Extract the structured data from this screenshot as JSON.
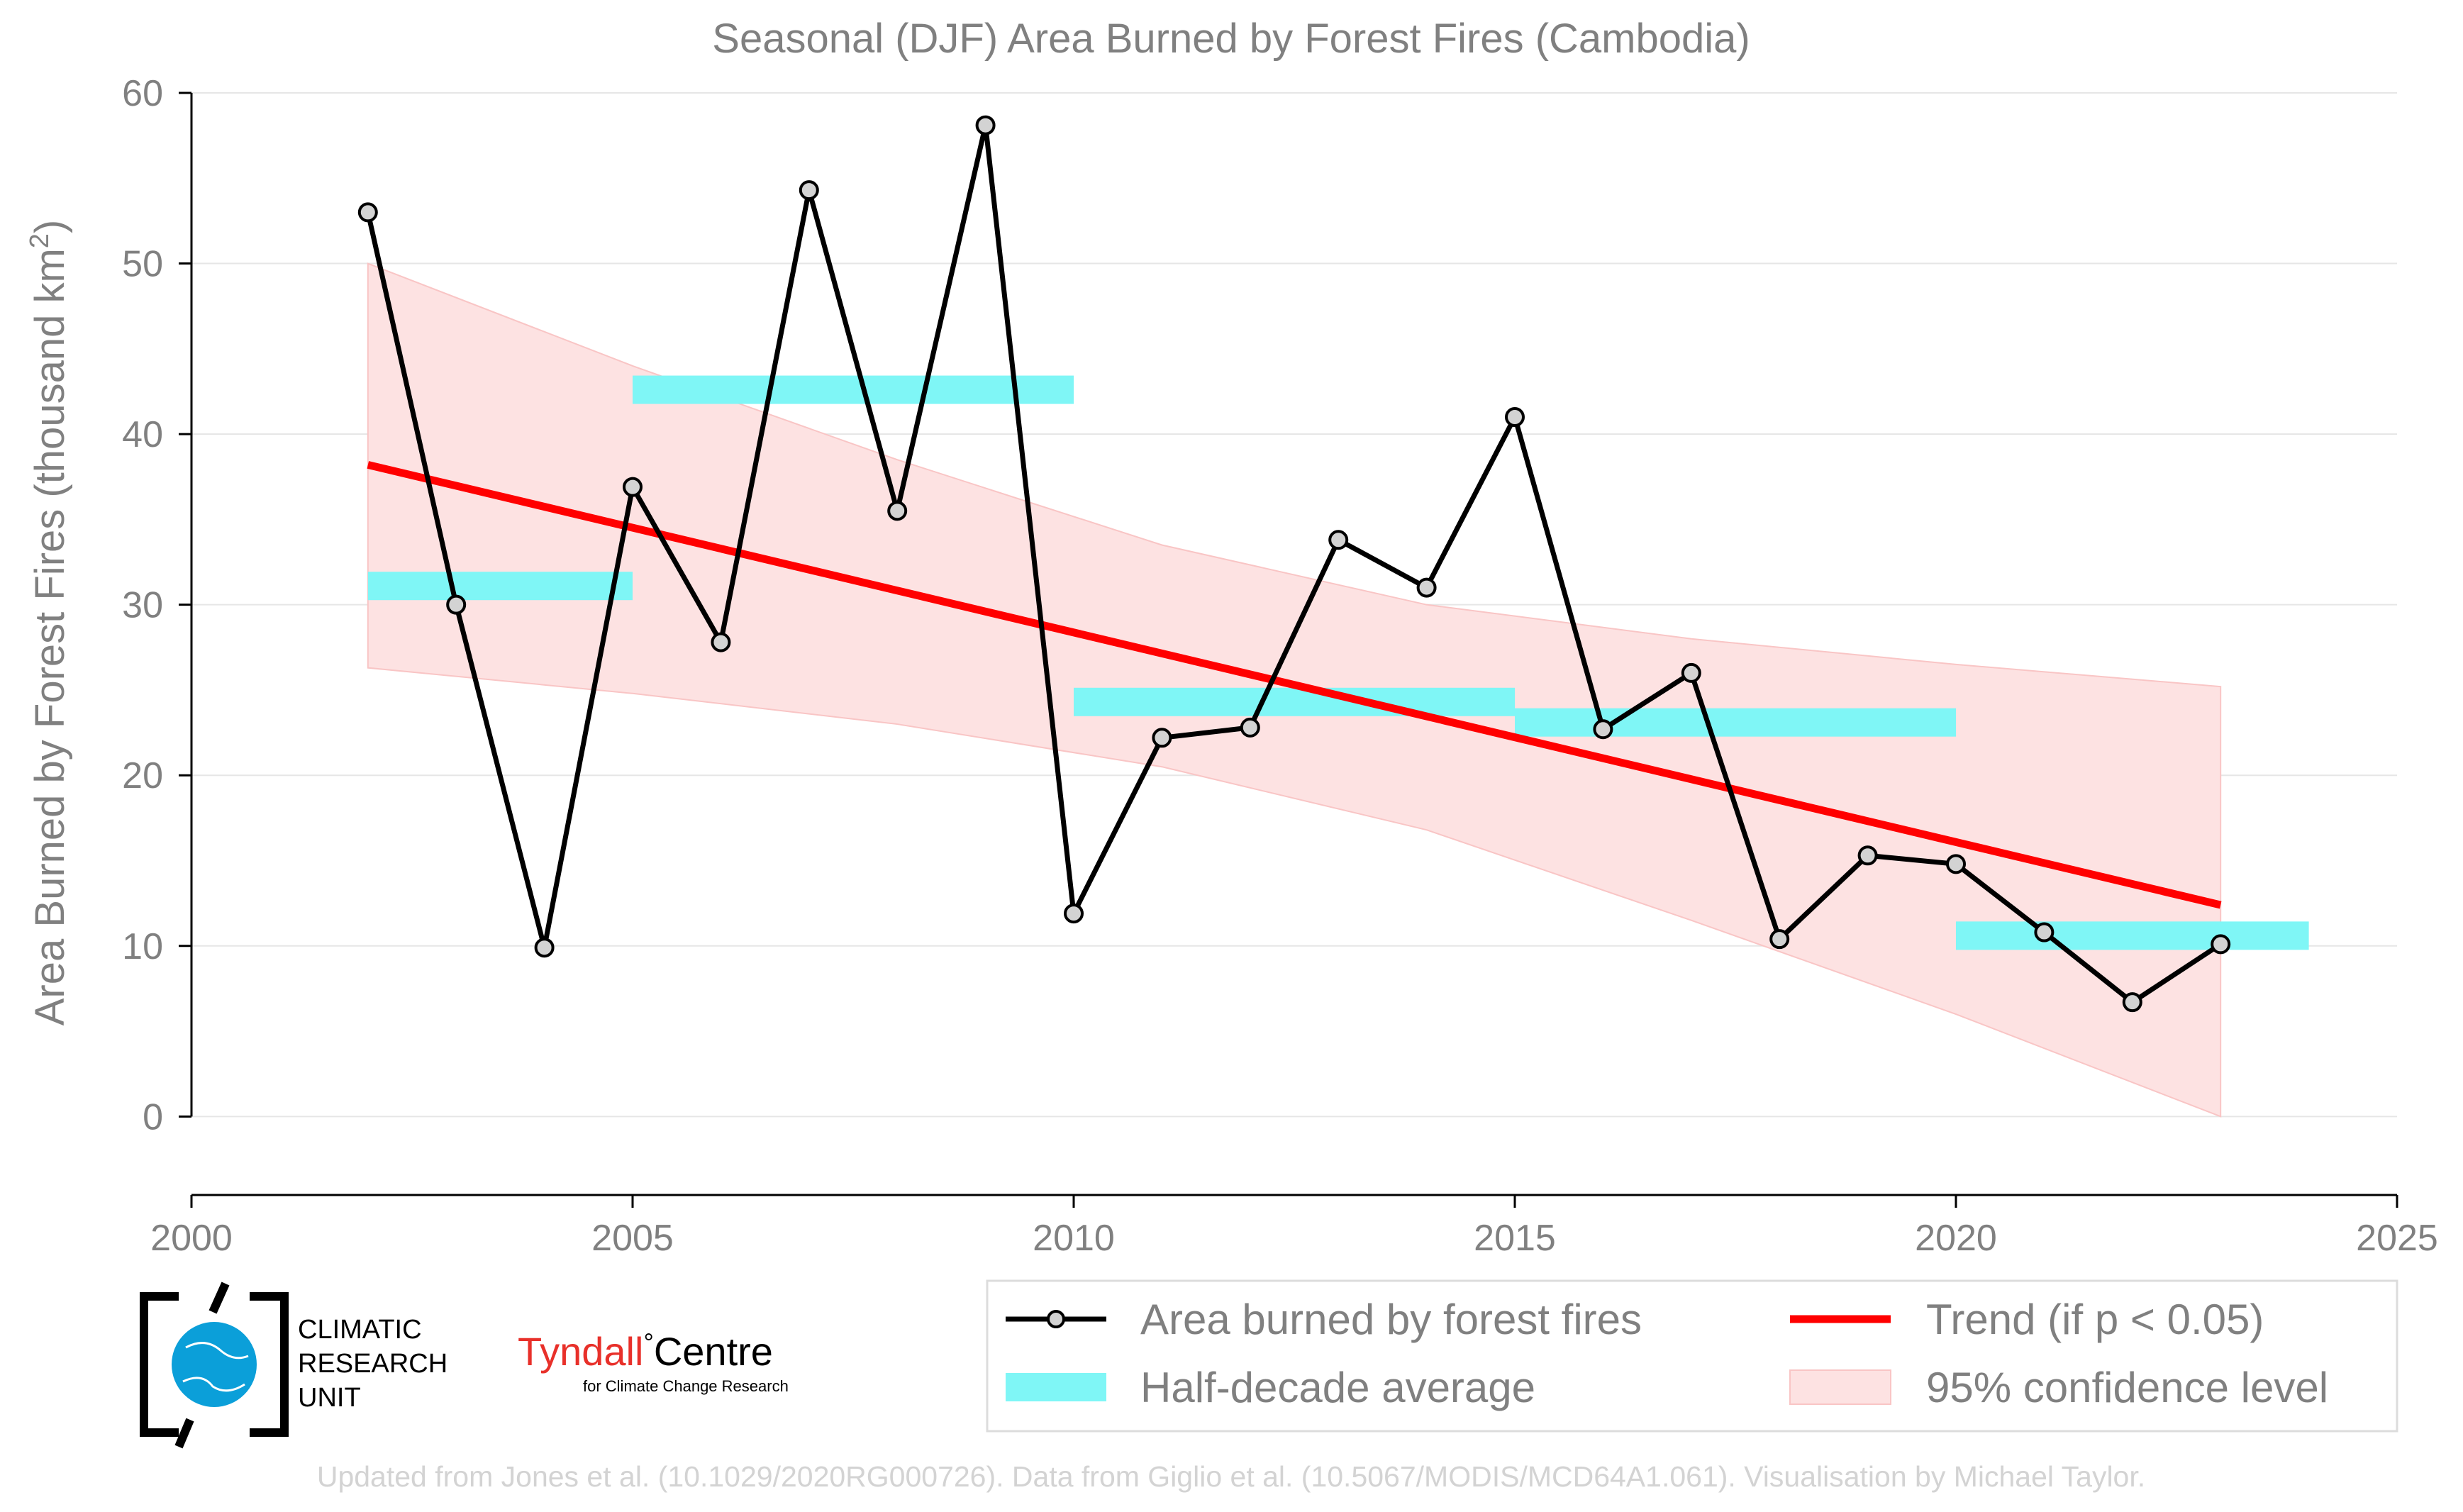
{
  "colors": {
    "line": "#000000",
    "marker_fill": "#d3d3d3",
    "trend": "#ff0000",
    "half_decade": "#7ff6f6",
    "confidence": "#fde2e2",
    "text": "#808080",
    "grid": "#e6e6e6"
  },
  "logos": {
    "cru_line1": "CLIMATIC",
    "cru_line2": "RESEARCH",
    "cru_line3": "UNIT",
    "tyndall_main": "Tyndall",
    "tyndall_degree": "°",
    "tyndall_centre": "Centre",
    "tyndall_sub": "for Climate Change Research"
  },
  "credit": "Updated from Jones et al. (10.1029/2020RG000726). Data from Giglio et al. (10.5067/MODIS/MCD64A1.061). Visualisation by Michael Taylor.",
  "chart_data": {
    "type": "line",
    "title": "Seasonal (DJF) Area Burned by Forest Fires (Cambodia)",
    "xlabel": "",
    "ylabel": "Area Burned by Forest Fires (thousand km",
    "ylabel_sup": "2",
    "ylabel_close": ")",
    "xlim": [
      2000,
      2025
    ],
    "ylim": [
      -4.6,
      60
    ],
    "xticks": [
      2000,
      2005,
      2010,
      2015,
      2020,
      2025
    ],
    "yticks": [
      0,
      10,
      20,
      30,
      40,
      50,
      60
    ],
    "grid": "horizontal",
    "legend_position": "below-right",
    "series": [
      {
        "name": "Area burned by forest fires",
        "x": [
          2002,
          2003,
          2004,
          2005,
          2006,
          2007,
          2008,
          2009,
          2010,
          2011,
          2012,
          2013,
          2014,
          2015,
          2016,
          2017,
          2018,
          2019,
          2020,
          2021,
          2022,
          2023
        ],
        "y": [
          53.0,
          30.0,
          9.9,
          36.9,
          27.8,
          54.3,
          35.5,
          58.1,
          11.9,
          22.2,
          22.8,
          33.8,
          31.0,
          41.0,
          22.7,
          26.0,
          10.4,
          15.3,
          14.8,
          10.8,
          6.7,
          10.1
        ]
      }
    ],
    "half_decade_average": {
      "name": "Half-decade average",
      "segments": [
        {
          "x_start": 2002,
          "x_end": 2005,
          "value": 31.1
        },
        {
          "x_start": 2005,
          "x_end": 2010,
          "value": 42.6
        },
        {
          "x_start": 2010,
          "x_end": 2015,
          "value": 24.3
        },
        {
          "x_start": 2015,
          "x_end": 2020,
          "value": 23.1
        },
        {
          "x_start": 2020,
          "x_end": 2024,
          "value": 10.6
        }
      ]
    },
    "trend": {
      "name": "Trend (if p < 0.05)",
      "x": [
        2002,
        2023
      ],
      "y": [
        38.2,
        12.4
      ]
    },
    "confidence_band": {
      "name": "95% confidence level",
      "x": [
        2002,
        2005,
        2008,
        2011,
        2014,
        2017,
        2020,
        2023
      ],
      "upper": [
        50.0,
        44.0,
        38.5,
        33.5,
        30.0,
        28.0,
        26.5,
        25.2
      ],
      "lower": [
        26.3,
        24.8,
        23.0,
        20.5,
        16.8,
        11.5,
        6.0,
        0.0
      ]
    }
  }
}
